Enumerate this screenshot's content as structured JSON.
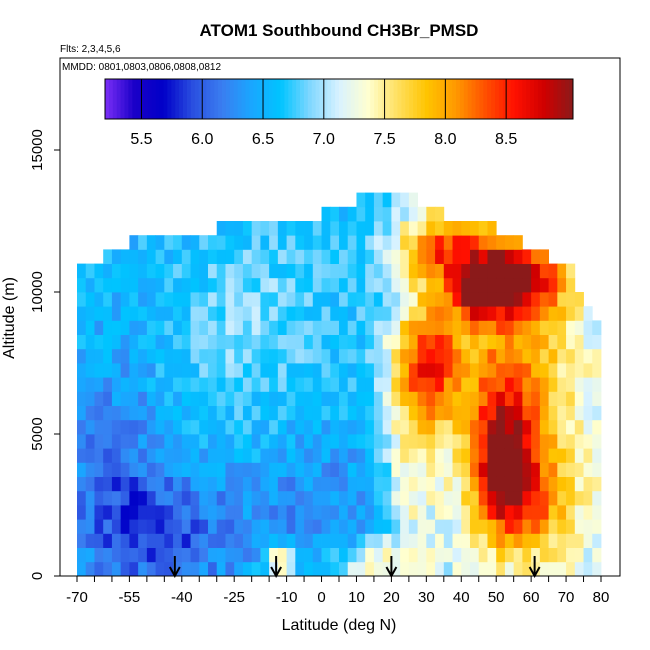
{
  "chart_data": {
    "type": "heatmap",
    "title": "ATOM1 Southbound CH3Br_PMSD",
    "flights_note": "Flts: 2,3,4,5,6",
    "dates_note": "MMDD: 0801,0803,0806,0808,0812",
    "xlabel": "Latitude (deg N)",
    "ylabel": "Altitude (m)",
    "xlim": [
      -70,
      80
    ],
    "ylim": [
      0,
      17500
    ],
    "x_ticks": [
      -70,
      -55,
      -40,
      -25,
      -10,
      0,
      10,
      20,
      30,
      40,
      50,
      60,
      70,
      80
    ],
    "y_ticks": [
      0,
      5000,
      10000,
      15000
    ],
    "colorbar": {
      "min": 5.2,
      "max": 9.05,
      "ticks": [
        5.5,
        6.0,
        6.5,
        7.0,
        7.5,
        8.0,
        8.5
      ],
      "tick_labels": [
        "5.5",
        "6.0",
        "6.5",
        "7.0",
        "7.5",
        "8.0",
        "8.5"
      ],
      "colors": [
        "#7b2ff7",
        "#1a00c8",
        "#0000c8",
        "#2a4fe0",
        "#3a7df0",
        "#1aa6ff",
        "#00c4ff",
        "#7fd7ff",
        "#d8f2ff",
        "#ffffd0",
        "#ffe060",
        "#ffc400",
        "#ff9800",
        "#ff5000",
        "#ff1000",
        "#d00000",
        "#8b1a1a"
      ]
    },
    "arrows_latitude": [
      -42,
      -13,
      20,
      61
    ],
    "field": {
      "lat_step": 5,
      "alt_step": 500,
      "profile_top_m": [
        {
          "lat": -70,
          "top": 10500
        },
        {
          "lat": -62,
          "top": 11000
        },
        {
          "lat": -50,
          "top": 11800
        },
        {
          "lat": -30,
          "top": 12000
        },
        {
          "lat": -20,
          "top": 12500
        },
        {
          "lat": 0,
          "top": 12500
        },
        {
          "lat": 10,
          "top": 13000
        },
        {
          "lat": 25,
          "top": 13300
        },
        {
          "lat": 35,
          "top": 12500
        },
        {
          "lat": 50,
          "top": 12000
        },
        {
          "lat": 65,
          "top": 11000
        },
        {
          "lat": 72,
          "top": 10500
        },
        {
          "lat": 79,
          "top": 8500
        },
        {
          "lat": 80,
          "top": 6000
        }
      ],
      "base_value": 6.55,
      "background_gradient_note": "lower values in southern hemisphere, higher north of 20N",
      "features": [
        {
          "lat": 30,
          "alt": 7500,
          "amp": 1.4,
          "sx": 7,
          "sy": 1500
        },
        {
          "lat": 52,
          "alt": 4000,
          "amp": 1.5,
          "sx": 6,
          "sy": 1600
        },
        {
          "lat": 55,
          "alt": 10500,
          "amp": 1.8,
          "sx": 10,
          "sy": 900
        },
        {
          "lat": 45,
          "alt": 10000,
          "amp": 1.3,
          "sx": 5,
          "sy": 600
        },
        {
          "lat": 35,
          "alt": 11500,
          "amp": 1.2,
          "sx": 10,
          "sy": 900
        },
        {
          "lat": 55,
          "alt": 7000,
          "amp": 1.0,
          "sx": 12,
          "sy": 2500
        },
        {
          "lat": 60,
          "alt": 2500,
          "amp": 0.9,
          "sx": 10,
          "sy": 1500
        },
        {
          "lat": -12,
          "alt": 500,
          "amp": 1.3,
          "sx": 3,
          "sy": 400
        },
        {
          "lat": 15,
          "alt": 500,
          "amp": 0.8,
          "sx": 8,
          "sy": 500
        },
        {
          "lat": -45,
          "alt": 1500,
          "amp": -0.6,
          "sx": 15,
          "sy": 1500
        },
        {
          "lat": -60,
          "alt": 4000,
          "amp": -0.4,
          "sx": 10,
          "sy": 2500
        },
        {
          "lat": 0,
          "alt": 2500,
          "amp": -0.3,
          "sx": 15,
          "sy": 2000
        },
        {
          "lat": -20,
          "alt": 9000,
          "amp": 0.35,
          "sx": 15,
          "sy": 2500
        },
        {
          "lat": 25,
          "alt": 4000,
          "amp": 0.5,
          "sx": 5,
          "sy": 2500
        }
      ]
    }
  }
}
